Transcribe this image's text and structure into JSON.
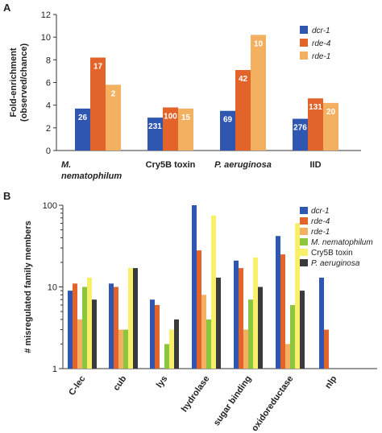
{
  "colors": {
    "dcr1": "#2f56b0",
    "rde4": "#e2642a",
    "rde1": "#f2b060",
    "mnem": "#8cc63e",
    "cry5b": "#f8ef6a",
    "paer": "#3a3a3a"
  },
  "chart_data": [
    {
      "type": "bar",
      "panel": "A",
      "ylabel": "Fold-enrichment (observed/chance)",
      "ylim": [
        0,
        12
      ],
      "yticks": [
        "0",
        "2",
        "4",
        "6",
        "8",
        "10",
        "12"
      ],
      "categories": [
        {
          "line1": "M.",
          "line2": "nematophilum",
          "italic": true
        },
        {
          "line1": "Cry5B toxin",
          "line2": "",
          "italic": false
        },
        {
          "line1": "P. aeruginosa",
          "line2": "",
          "italic": true
        },
        {
          "line1": "IID",
          "line2": "",
          "italic": false
        }
      ],
      "series": [
        {
          "name": "dcr-1",
          "color_key": "dcr1",
          "values": [
            3.7,
            2.9,
            3.5,
            2.8
          ],
          "labels": [
            "26",
            "231",
            "69",
            "276"
          ]
        },
        {
          "name": "rde-4",
          "color_key": "rde4",
          "values": [
            8.2,
            3.8,
            7.1,
            4.6
          ],
          "labels": [
            "17",
            "100",
            "42",
            "131"
          ]
        },
        {
          "name": "rde-1",
          "color_key": "rde1",
          "values": [
            5.8,
            3.7,
            10.2,
            4.2
          ],
          "labels": [
            "2",
            "15",
            "10",
            "20"
          ]
        }
      ],
      "legend_position": "right"
    },
    {
      "type": "bar",
      "panel": "B",
      "ylabel": "# misregulated family members",
      "yscale": "log",
      "ylim": [
        1,
        100
      ],
      "yticks": [
        "1",
        "10",
        "100"
      ],
      "categories": [
        "C-lec",
        "cub",
        "lys",
        "hydrolase",
        "sugar binding",
        "oxidoreductase",
        "nlp"
      ],
      "series": [
        {
          "name": "dcr-1",
          "color_key": "dcr1",
          "italic": true,
          "values": [
            9,
            11,
            7,
            100,
            21,
            42,
            13
          ]
        },
        {
          "name": "rde-4",
          "color_key": "rde4",
          "italic": true,
          "values": [
            11,
            10,
            6,
            28,
            17,
            25,
            3
          ]
        },
        {
          "name": "rde-1",
          "color_key": "rde1",
          "italic": true,
          "values": [
            4,
            3,
            1,
            8,
            3,
            2,
            null
          ]
        },
        {
          "name": "M. nematophilum",
          "color_key": "mnem",
          "italic": true,
          "values": [
            10,
            3,
            2,
            4,
            7,
            6,
            null
          ]
        },
        {
          "name": "Cry5B toxin",
          "color_key": "cry5b",
          "italic": false,
          "values": [
            13,
            17,
            3,
            75,
            23,
            60,
            null
          ]
        },
        {
          "name": "P. aeruginosa",
          "color_key": "paer",
          "italic": true,
          "values": [
            7,
            17,
            4,
            13,
            10,
            9,
            null
          ]
        }
      ],
      "legend_position": "top-right"
    }
  ]
}
